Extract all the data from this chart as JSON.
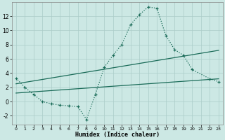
{
  "xlabel": "Humidex (Indice chaleur)",
  "bg_color": "#cce8e4",
  "grid_color": "#aaccc8",
  "line_color": "#1a6b58",
  "xlim": [
    -0.5,
    23.5
  ],
  "ylim": [
    -3.2,
    14.0
  ],
  "xticks": [
    0,
    1,
    2,
    3,
    4,
    5,
    6,
    7,
    8,
    9,
    10,
    11,
    12,
    13,
    14,
    15,
    16,
    17,
    18,
    19,
    20,
    21,
    22,
    23
  ],
  "yticks": [
    -2,
    0,
    2,
    4,
    6,
    8,
    10,
    12
  ],
  "line1_x": [
    0,
    1,
    2,
    3,
    4,
    5,
    6,
    7,
    8,
    9,
    10,
    11,
    12,
    13,
    14,
    15,
    16,
    17,
    18,
    19,
    20,
    22,
    23
  ],
  "line1_y": [
    3.3,
    2.0,
    1.0,
    0.0,
    -0.3,
    -0.5,
    -0.6,
    -0.7,
    -2.5,
    1.0,
    4.8,
    6.5,
    8.0,
    10.8,
    12.2,
    13.3,
    13.1,
    9.3,
    7.3,
    6.5,
    4.5,
    3.2,
    2.8
  ],
  "line2_x": [
    0,
    23
  ],
  "line2_y": [
    2.5,
    7.2
  ],
  "line3_x": [
    0,
    23
  ],
  "line3_y": [
    1.2,
    3.2
  ]
}
